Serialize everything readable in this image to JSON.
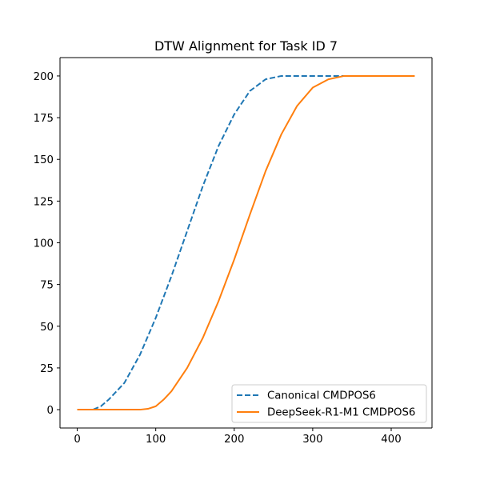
{
  "chart_data": {
    "type": "line",
    "title": "DTW Alignment for Task ID 7",
    "xlabel": "",
    "ylabel": "",
    "xlim": [
      -22,
      452
    ],
    "ylim": [
      -11,
      211
    ],
    "xticks": [
      0,
      100,
      200,
      300,
      400
    ],
    "yticks": [
      0,
      25,
      50,
      75,
      100,
      125,
      150,
      175,
      200
    ],
    "grid": false,
    "legend_position": "lower-right",
    "series": [
      {
        "name": "Canonical CMDPOS6",
        "color": "#1f77b4",
        "style": "dashed",
        "x": [
          0,
          20,
          30,
          40,
          60,
          80,
          100,
          120,
          140,
          160,
          180,
          200,
          220,
          240,
          260,
          275,
          290,
          300,
          320,
          345
        ],
        "y": [
          0,
          0,
          2,
          6,
          16,
          33,
          55,
          80,
          107,
          134,
          158,
          177,
          191,
          198,
          200,
          200,
          200,
          200,
          200,
          200
        ]
      },
      {
        "name": "DeepSeek-R1-M1 CMDPOS6",
        "color": "#ff7f0e",
        "style": "solid",
        "x": [
          0,
          50,
          80,
          90,
          100,
          110,
          120,
          140,
          160,
          180,
          200,
          220,
          240,
          260,
          280,
          300,
          320,
          340,
          350,
          400,
          430
        ],
        "y": [
          0,
          0,
          0,
          0.5,
          2,
          6,
          11,
          25,
          43,
          65,
          90,
          117,
          143,
          165,
          182,
          193,
          198,
          200,
          200,
          200,
          200
        ]
      }
    ]
  }
}
